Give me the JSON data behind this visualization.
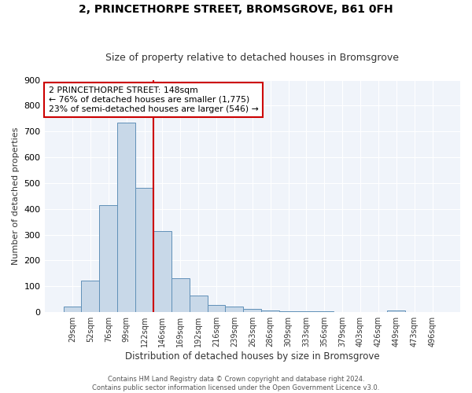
{
  "title": "2, PRINCETHORPE STREET, BROMSGROVE, B61 0FH",
  "subtitle": "Size of property relative to detached houses in Bromsgrove",
  "xlabel": "Distribution of detached houses by size in Bromsgrove",
  "ylabel": "Number of detached properties",
  "bar_labels": [
    "29sqm",
    "52sqm",
    "76sqm",
    "99sqm",
    "122sqm",
    "146sqm",
    "169sqm",
    "192sqm",
    "216sqm",
    "239sqm",
    "263sqm",
    "286sqm",
    "309sqm",
    "333sqm",
    "356sqm",
    "379sqm",
    "403sqm",
    "426sqm",
    "449sqm",
    "473sqm",
    "496sqm"
  ],
  "bar_values": [
    22,
    122,
    415,
    733,
    483,
    315,
    133,
    65,
    28,
    22,
    12,
    7,
    5,
    5,
    5,
    0,
    0,
    0,
    8,
    0,
    0
  ],
  "bar_color": "#c8d8e8",
  "bar_edge_color": "#6090b8",
  "vline_x": 4.5,
  "vline_color": "#cc0000",
  "annotation_text": "2 PRINCETHORPE STREET: 148sqm\n← 76% of detached houses are smaller (1,775)\n23% of semi-detached houses are larger (546) →",
  "annotation_box_color": "#ffffff",
  "annotation_box_edge": "#cc0000",
  "ylim": [
    0,
    900
  ],
  "yticks": [
    0,
    100,
    200,
    300,
    400,
    500,
    600,
    700,
    800,
    900
  ],
  "footer_line1": "Contains HM Land Registry data © Crown copyright and database right 2024.",
  "footer_line2": "Contains public sector information licensed under the Open Government Licence v3.0.",
  "bg_color": "#ffffff",
  "plot_bg_color": "#f0f4fa",
  "grid_color": "#ffffff",
  "title_fontsize": 10,
  "subtitle_fontsize": 9
}
